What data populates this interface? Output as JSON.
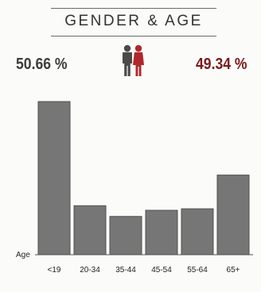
{
  "header": {
    "title": "GENDER & AGE"
  },
  "gender": {
    "male_pct": "50.66 %",
    "female_pct": "49.34 %",
    "male_color": "#4a4a4a",
    "female_color": "#b0282a",
    "icons": [
      "male-person-icon",
      "female-person-icon"
    ]
  },
  "chart_data": {
    "type": "bar",
    "categories": [
      "<19",
      "20-34",
      "35-44",
      "45-54",
      "55-64",
      "65+"
    ],
    "values": [
      100,
      32,
      25,
      29,
      30,
      52
    ],
    "xlabel": "Age",
    "ylabel": "",
    "ylim": [
      0,
      100
    ],
    "bar_color": "#767676",
    "grid": false
  }
}
